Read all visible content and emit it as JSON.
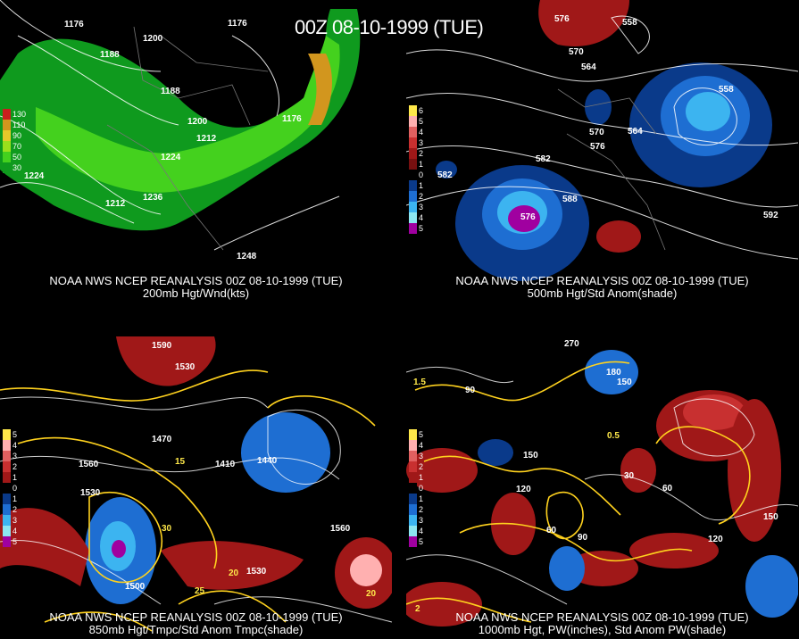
{
  "title": "00Z 08-10-1999 (TUE)",
  "panels": [
    {
      "caption1": "NOAA NWS NCEP REANALYSIS 00Z 08-10-1999 (TUE)",
      "caption2": "200mb Hgt/Wnd(kts)",
      "legend": [
        {
          "t": "130",
          "c": "#c81e1e"
        },
        {
          "t": "110",
          "c": "#d2961e"
        },
        {
          "t": "90",
          "c": "#e6c82a"
        },
        {
          "t": "70",
          "c": "#9be01c"
        },
        {
          "t": "50",
          "c": "#44d11e"
        },
        {
          "t": "30",
          "c": "#0f9a1e"
        }
      ],
      "labels": [
        "1176",
        "1200",
        "1188",
        "1176",
        "1188",
        "1212",
        "1200",
        "1224",
        "1224",
        "1212",
        "1236",
        "1248",
        "1176"
      ]
    },
    {
      "caption1": "NOAA NWS NCEP REANALYSIS 00Z 08-10-1999 (TUE)",
      "caption2": "500mb Hgt/Std Anom(shade)",
      "legend": [
        {
          "t": "6",
          "c": "#ffe94a"
        },
        {
          "t": "5",
          "c": "#ffb0b0"
        },
        {
          "t": "4",
          "c": "#e06060"
        },
        {
          "t": "3",
          "c": "#c83030"
        },
        {
          "t": "2",
          "c": "#a01818"
        },
        {
          "t": "1",
          "c": "#781010"
        },
        {
          "t": "0",
          "c": "#000"
        },
        {
          "t": "1",
          "c": "#0a3a8a"
        },
        {
          "t": "2",
          "c": "#1e6ed2"
        },
        {
          "t": "3",
          "c": "#3cb4f0"
        },
        {
          "t": "4",
          "c": "#8ce6f0"
        },
        {
          "t": "5",
          "c": "#a000a0"
        }
      ],
      "labels": [
        "576",
        "558",
        "570",
        "564",
        "558",
        "570",
        "576",
        "564",
        "582",
        "582",
        "588",
        "576",
        "592"
      ]
    },
    {
      "caption1": "NOAA NWS NCEP REANALYSIS 00Z 08-10-1999 (TUE)",
      "caption2": "850mb Hgt/Tmpc/Std Anom Tmpc(shade)",
      "legend": [
        {
          "t": "5",
          "c": "#ffe94a"
        },
        {
          "t": "4",
          "c": "#ffb0b0"
        },
        {
          "t": "3",
          "c": "#e06060"
        },
        {
          "t": "2",
          "c": "#c83030"
        },
        {
          "t": "1",
          "c": "#a01818"
        },
        {
          "t": "0",
          "c": "#000"
        },
        {
          "t": "1",
          "c": "#0a3a8a"
        },
        {
          "t": "2",
          "c": "#1e6ed2"
        },
        {
          "t": "3",
          "c": "#3cb4f0"
        },
        {
          "t": "4",
          "c": "#8ce6f0"
        },
        {
          "t": "5",
          "c": "#a000a0"
        }
      ],
      "labels": [
        "1590",
        "1530",
        "1470",
        "1440",
        "1410",
        "1560",
        "1530",
        "1500",
        "1560",
        "1530",
        "20",
        "25",
        "15",
        "30",
        "20"
      ]
    },
    {
      "caption1": "NOAA NWS NCEP REANALYSIS 00Z 08-10-1999 (TUE)",
      "caption2": "1000mb Hgt, PW(inches), Std Anom PW(shade)",
      "legend": [
        {
          "t": "5",
          "c": "#ffe94a"
        },
        {
          "t": "4",
          "c": "#ffb0b0"
        },
        {
          "t": "3",
          "c": "#e06060"
        },
        {
          "t": "2",
          "c": "#c83030"
        },
        {
          "t": "1",
          "c": "#a01818"
        },
        {
          "t": "0",
          "c": "#000"
        },
        {
          "t": "1",
          "c": "#0a3a8a"
        },
        {
          "t": "2",
          "c": "#1e6ed2"
        },
        {
          "t": "3",
          "c": "#3cb4f0"
        },
        {
          "t": "4",
          "c": "#8ce6f0"
        },
        {
          "t": "5",
          "c": "#a000a0"
        }
      ],
      "labels": [
        "270",
        "180",
        "150",
        "90",
        "30",
        "60",
        "150",
        "120",
        "60",
        "90",
        "120",
        "150",
        "1.5",
        "0.5",
        "2"
      ]
    }
  ]
}
